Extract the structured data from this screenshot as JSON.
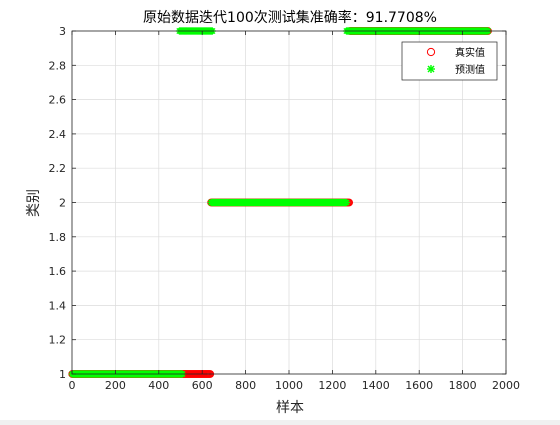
{
  "chart_data": {
    "type": "scatter",
    "title": "原始数据迭代100次测试集准确率：91.7708%",
    "xlabel": "样本",
    "ylabel": "类别",
    "xlim": [
      0,
      2000
    ],
    "ylim": [
      1,
      3
    ],
    "xticks": [
      0,
      200,
      400,
      600,
      800,
      1000,
      1200,
      1400,
      1600,
      1800,
      2000
    ],
    "yticks": [
      1,
      1.2,
      1.4,
      1.6,
      1.8,
      2,
      2.2,
      2.4,
      2.6,
      2.8,
      3
    ],
    "xtick_labels": [
      "0",
      "200",
      "400",
      "600",
      "800",
      "1000",
      "1200",
      "1400",
      "1600",
      "1800",
      "2000"
    ],
    "ytick_labels": [
      "1",
      "1.2",
      "1.4",
      "1.6",
      "1.8",
      "2",
      "2.2",
      "2.4",
      "2.6",
      "2.8",
      "3"
    ],
    "grid": true,
    "legend_position": "top-right",
    "series": [
      {
        "name": "真实值",
        "marker": "circle",
        "color": "#ff0000",
        "segments": [
          {
            "x_start": 1,
            "x_end": 640,
            "y": 1
          },
          {
            "x_start": 641,
            "x_end": 1280,
            "y": 2
          },
          {
            "x_start": 1281,
            "x_end": 1920,
            "y": 3
          }
        ]
      },
      {
        "name": "预测值",
        "marker": "asterisk",
        "color": "#00ff00",
        "segments": [
          {
            "x_start": 1,
            "x_end": 510,
            "y": 1
          },
          {
            "x_start": 495,
            "x_end": 650,
            "y": 3
          },
          {
            "x_start": 641,
            "x_end": 1265,
            "y": 2
          },
          {
            "x_start": 1265,
            "x_end": 1920,
            "y": 3
          }
        ]
      }
    ]
  }
}
